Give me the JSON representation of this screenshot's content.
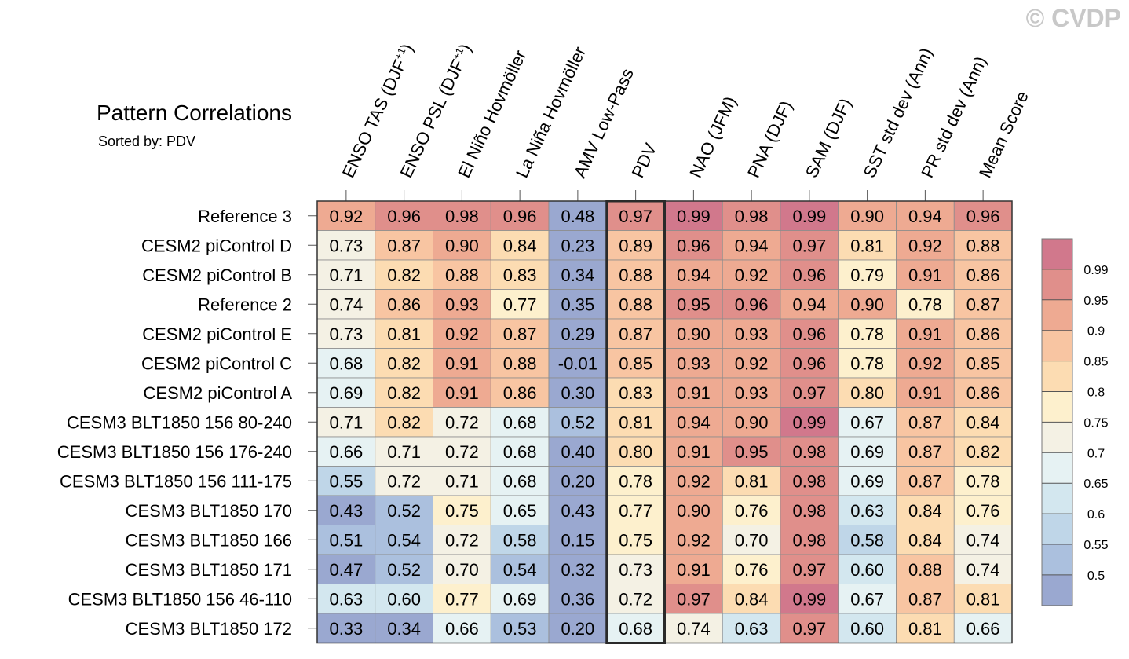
{
  "copyright": "© CVDP",
  "chart_data": {
    "type": "heatmap",
    "title": "Pattern Correlations",
    "subtitle": "Sorted by: PDV",
    "highlighted_column": "PDV",
    "columns": [
      {
        "label": "ENSO TAS (DJF",
        "sup": "+1",
        "tail": ")"
      },
      {
        "label": "ENSO PSL (DJF",
        "sup": "+1",
        "tail": ")"
      },
      {
        "label": "El Niño Hovmöller",
        "sup": "",
        "tail": ""
      },
      {
        "label": "La Niña Hovmöller",
        "sup": "",
        "tail": ""
      },
      {
        "label": "AMV Low-Pass",
        "sup": "",
        "tail": ""
      },
      {
        "label": "PDV",
        "sup": "",
        "tail": ""
      },
      {
        "label": "NAO (JFM)",
        "sup": "",
        "tail": ""
      },
      {
        "label": "PNA (DJF)",
        "sup": "",
        "tail": ""
      },
      {
        "label": "SAM (DJF)",
        "sup": "",
        "tail": ""
      },
      {
        "label": "SST std dev (Ann)",
        "sup": "",
        "tail": ""
      },
      {
        "label": "PR std dev (Ann)",
        "sup": "",
        "tail": ""
      },
      {
        "label": "Mean Score",
        "sup": "",
        "tail": ""
      }
    ],
    "rows": [
      {
        "name": "Reference 3",
        "values": [
          "0.92",
          "0.96",
          "0.98",
          "0.96",
          "0.48",
          "0.97",
          "0.99",
          "0.98",
          "0.99",
          "0.90",
          "0.94",
          "0.96"
        ]
      },
      {
        "name": "CESM2 piControl D",
        "values": [
          "0.73",
          "0.87",
          "0.90",
          "0.84",
          "0.23",
          "0.89",
          "0.96",
          "0.94",
          "0.97",
          "0.81",
          "0.92",
          "0.88"
        ]
      },
      {
        "name": "CESM2 piControl B",
        "values": [
          "0.71",
          "0.82",
          "0.88",
          "0.83",
          "0.34",
          "0.88",
          "0.94",
          "0.92",
          "0.96",
          "0.79",
          "0.91",
          "0.86"
        ]
      },
      {
        "name": "Reference 2",
        "values": [
          "0.74",
          "0.86",
          "0.93",
          "0.77",
          "0.35",
          "0.88",
          "0.95",
          "0.96",
          "0.94",
          "0.90",
          "0.78",
          "0.87"
        ]
      },
      {
        "name": "CESM2 piControl E",
        "values": [
          "0.73",
          "0.81",
          "0.92",
          "0.87",
          "0.29",
          "0.87",
          "0.90",
          "0.93",
          "0.96",
          "0.78",
          "0.91",
          "0.86"
        ]
      },
      {
        "name": "CESM2 piControl C",
        "values": [
          "0.68",
          "0.82",
          "0.91",
          "0.88",
          "-0.01",
          "0.85",
          "0.93",
          "0.92",
          "0.96",
          "0.78",
          "0.92",
          "0.85"
        ]
      },
      {
        "name": "CESM2 piControl A",
        "values": [
          "0.69",
          "0.82",
          "0.91",
          "0.86",
          "0.30",
          "0.83",
          "0.91",
          "0.93",
          "0.97",
          "0.80",
          "0.91",
          "0.86"
        ]
      },
      {
        "name": "CESM3 BLT1850 156 80-240",
        "values": [
          "0.71",
          "0.82",
          "0.72",
          "0.68",
          "0.52",
          "0.81",
          "0.94",
          "0.90",
          "0.99",
          "0.67",
          "0.87",
          "0.84"
        ]
      },
      {
        "name": "CESM3 BLT1850 156 176-240",
        "values": [
          "0.66",
          "0.71",
          "0.72",
          "0.68",
          "0.40",
          "0.80",
          "0.91",
          "0.95",
          "0.98",
          "0.69",
          "0.87",
          "0.82"
        ]
      },
      {
        "name": "CESM3 BLT1850 156 111-175",
        "values": [
          "0.55",
          "0.72",
          "0.71",
          "0.68",
          "0.20",
          "0.78",
          "0.92",
          "0.81",
          "0.98",
          "0.69",
          "0.87",
          "0.78"
        ]
      },
      {
        "name": "CESM3 BLT1850 170",
        "values": [
          "0.43",
          "0.52",
          "0.75",
          "0.65",
          "0.43",
          "0.77",
          "0.90",
          "0.76",
          "0.98",
          "0.63",
          "0.84",
          "0.76"
        ]
      },
      {
        "name": "CESM3 BLT1850 166",
        "values": [
          "0.51",
          "0.54",
          "0.72",
          "0.58",
          "0.15",
          "0.75",
          "0.92",
          "0.70",
          "0.98",
          "0.58",
          "0.84",
          "0.74"
        ]
      },
      {
        "name": "CESM3 BLT1850 171",
        "values": [
          "0.47",
          "0.52",
          "0.70",
          "0.54",
          "0.32",
          "0.73",
          "0.91",
          "0.76",
          "0.97",
          "0.60",
          "0.88",
          "0.74"
        ]
      },
      {
        "name": "CESM3 BLT1850 156 46-110",
        "values": [
          "0.63",
          "0.60",
          "0.77",
          "0.69",
          "0.36",
          "0.72",
          "0.97",
          "0.84",
          "0.99",
          "0.67",
          "0.87",
          "0.81"
        ]
      },
      {
        "name": "CESM3 BLT1850 172",
        "values": [
          "0.33",
          "0.34",
          "0.66",
          "0.53",
          "0.20",
          "0.68",
          "0.74",
          "0.63",
          "0.97",
          "0.60",
          "0.81",
          "0.66"
        ]
      }
    ],
    "colorbar": {
      "ticks": [
        "0.99",
        "0.95",
        "0.9",
        "0.85",
        "0.8",
        "0.75",
        "0.7",
        "0.65",
        "0.6",
        "0.55",
        "0.5"
      ],
      "thresholds": [
        0.5,
        0.55,
        0.6,
        0.65,
        0.7,
        0.75,
        0.8,
        0.85,
        0.9,
        0.95,
        0.99
      ],
      "colors": [
        "#9aa8d0",
        "#abc0de",
        "#bfd6e8",
        "#d3e7ef",
        "#e6f2f3",
        "#f4f1e4",
        "#fdf0cd",
        "#fcdcb2",
        "#f8c5a2",
        "#eeaa92",
        "#e08f8b",
        "#d1788c"
      ]
    }
  }
}
